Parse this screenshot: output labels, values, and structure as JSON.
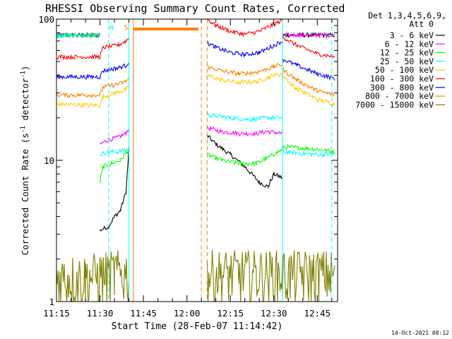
{
  "chart_data": {
    "type": "line",
    "title": "RHESSI Observing Summary Count Rates, Corrected",
    "xlabel": "Start Time (28-Feb-07 11:14:42)",
    "ylabel": "Corrected Count Rate (s⁻¹ detector⁻¹)",
    "ylabel_parts": [
      "Corrected Count Rate (s",
      "-1",
      " detector",
      "-1",
      ")"
    ],
    "footer": "14-Oct-2021 08:12",
    "y_scale": "log",
    "ylim": [
      1,
      100
    ],
    "xlim": [
      "11:15",
      "12:52"
    ],
    "x_ticks": [
      "11:15",
      "11:30",
      "11:45",
      "12:00",
      "12:15",
      "12:30",
      "12:45"
    ],
    "y_ticks": [
      "1",
      "10",
      "100"
    ],
    "legend_header": [
      "Det 1,3,4,5,6,9,",
      "Att 0"
    ],
    "legend_position": "right",
    "flags": [
      {
        "label": "N",
        "x": "11:34",
        "color": "#00ffff"
      },
      {
        "label": "S",
        "x": "11:39",
        "color": "#ff8000"
      }
    ],
    "vlines": [
      {
        "x": "11:33",
        "color": "#00ffff",
        "dashed": true
      },
      {
        "x": "11:40",
        "color": "#00ffff",
        "dashed": false
      },
      {
        "x": "11:41.5",
        "color": "#ff8000",
        "dashed": false
      },
      {
        "x": "12:05",
        "color": "#ff8000",
        "dashed": true
      },
      {
        "x": "12:07",
        "color": "#ff8000",
        "dashed": true
      },
      {
        "x": "12:33",
        "color": "#00ffff",
        "dashed": false
      },
      {
        "x": "12:50",
        "color": "#00ffff",
        "dashed": true
      }
    ],
    "saa_bar": {
      "x": [
        "11:41.5",
        "12:04"
      ],
      "value": 85,
      "color": "#ff8000"
    },
    "series": [
      {
        "name": "3 - 6 keV",
        "color": "#000000",
        "segments": [
          [
            {
              "x": "11:15",
              "y": 77
            },
            {
              "x": "11:30",
              "y": 77
            }
          ],
          [
            {
              "x": "11:30",
              "y": 3.2
            },
            {
              "x": "11:33",
              "y": 3.4
            },
            {
              "x": "11:35",
              "y": 4
            },
            {
              "x": "11:37",
              "y": 4.4
            },
            {
              "x": "11:39",
              "y": 6
            },
            {
              "x": "11:40",
              "y": 12
            }
          ],
          [
            {
              "x": "12:07",
              "y": 15
            },
            {
              "x": "12:10",
              "y": 13
            },
            {
              "x": "12:15",
              "y": 11
            },
            {
              "x": "12:20",
              "y": 9
            },
            {
              "x": "12:25",
              "y": 7
            },
            {
              "x": "12:28",
              "y": 6.5
            },
            {
              "x": "12:30",
              "y": 8
            },
            {
              "x": "12:33",
              "y": 7.5
            }
          ],
          [
            {
              "x": "12:33",
              "y": 77
            },
            {
              "x": "12:51",
              "y": 77
            }
          ]
        ]
      },
      {
        "name": "6 - 12 keV",
        "color": "#ff00ff",
        "segments": [
          [
            {
              "x": "11:15",
              "y": 77
            },
            {
              "x": "11:30",
              "y": 77
            }
          ],
          [
            {
              "x": "11:30",
              "y": 13
            },
            {
              "x": "11:33",
              "y": 14
            },
            {
              "x": "11:36",
              "y": 14.5
            },
            {
              "x": "11:39",
              "y": 15.5
            },
            {
              "x": "11:40",
              "y": 17
            }
          ],
          [
            {
              "x": "12:07",
              "y": 17
            },
            {
              "x": "12:12",
              "y": 16
            },
            {
              "x": "12:18",
              "y": 15.5
            },
            {
              "x": "12:24",
              "y": 15.5
            },
            {
              "x": "12:28",
              "y": 16
            },
            {
              "x": "12:33",
              "y": 15.5
            }
          ],
          [
            {
              "x": "12:33",
              "y": 77
            },
            {
              "x": "12:51",
              "y": 77
            }
          ]
        ]
      },
      {
        "name": "12 - 25 keV",
        "color": "#00ff00",
        "segments": [
          [
            {
              "x": "11:15",
              "y": 77
            },
            {
              "x": "11:30",
              "y": 77
            }
          ],
          [
            {
              "x": "11:30",
              "y": 7
            },
            {
              "x": "11:31",
              "y": 9
            },
            {
              "x": "11:34",
              "y": 9.5
            },
            {
              "x": "11:37",
              "y": 10
            },
            {
              "x": "11:40",
              "y": 12
            }
          ],
          [
            {
              "x": "12:07",
              "y": 11
            },
            {
              "x": "12:12",
              "y": 10
            },
            {
              "x": "12:18",
              "y": 9.5
            },
            {
              "x": "12:24",
              "y": 9.5
            },
            {
              "x": "12:30",
              "y": 11
            },
            {
              "x": "12:33",
              "y": 12
            }
          ],
          [
            {
              "x": "12:33",
              "y": 12.5
            },
            {
              "x": "12:45",
              "y": 12
            },
            {
              "x": "12:51",
              "y": 11.5
            }
          ]
        ]
      },
      {
        "name": "25 - 50 keV",
        "color": "#00ffff",
        "segments": [
          [
            {
              "x": "11:15",
              "y": 77
            },
            {
              "x": "11:30",
              "y": 77
            }
          ],
          [
            {
              "x": "11:30",
              "y": 11
            },
            {
              "x": "11:33",
              "y": 11.5
            },
            {
              "x": "11:36",
              "y": 11.5
            },
            {
              "x": "11:40",
              "y": 12
            }
          ],
          [
            {
              "x": "12:07",
              "y": 21
            },
            {
              "x": "12:15",
              "y": 20
            },
            {
              "x": "12:22",
              "y": 19.5
            },
            {
              "x": "12:28",
              "y": 20
            },
            {
              "x": "12:33",
              "y": 20
            }
          ],
          [
            {
              "x": "12:33",
              "y": 11.5
            },
            {
              "x": "12:45",
              "y": 11
            },
            {
              "x": "12:51",
              "y": 11
            }
          ]
        ]
      },
      {
        "name": "50 - 100 keV",
        "color": "#ffcc00",
        "segments": [
          [
            {
              "x": "11:15",
              "y": 25
            },
            {
              "x": "11:30",
              "y": 24.5
            },
            {
              "x": "11:31",
              "y": 28
            },
            {
              "x": "11:35",
              "y": 30
            },
            {
              "x": "11:38",
              "y": 31
            },
            {
              "x": "11:40",
              "y": 33
            }
          ],
          [
            {
              "x": "12:07",
              "y": 40
            },
            {
              "x": "12:12",
              "y": 37
            },
            {
              "x": "12:18",
              "y": 35.5
            },
            {
              "x": "12:24",
              "y": 36
            },
            {
              "x": "12:30",
              "y": 40
            },
            {
              "x": "12:33",
              "y": 41
            }
          ],
          [
            {
              "x": "12:33",
              "y": 40
            },
            {
              "x": "12:37",
              "y": 33
            },
            {
              "x": "12:45",
              "y": 27
            },
            {
              "x": "12:51",
              "y": 25
            }
          ]
        ]
      },
      {
        "name": "100 - 300 keV",
        "color": "#ff0000",
        "segments": [
          [
            {
              "x": "11:15",
              "y": 54
            },
            {
              "x": "11:30",
              "y": 54
            },
            {
              "x": "11:31",
              "y": 63
            },
            {
              "x": "11:36",
              "y": 65
            },
            {
              "x": "11:39",
              "y": 70
            },
            {
              "x": "11:40",
              "y": 74
            }
          ],
          [
            {
              "x": "12:07",
              "y": 100
            },
            {
              "x": "12:10",
              "y": 90
            },
            {
              "x": "12:15",
              "y": 82
            },
            {
              "x": "12:20",
              "y": 78
            },
            {
              "x": "12:25",
              "y": 82
            },
            {
              "x": "12:30",
              "y": 92
            },
            {
              "x": "12:33",
              "y": 98
            }
          ],
          [
            {
              "x": "12:33",
              "y": 75
            },
            {
              "x": "12:38",
              "y": 65
            },
            {
              "x": "12:45",
              "y": 57
            },
            {
              "x": "12:51",
              "y": 54
            }
          ]
        ]
      },
      {
        "name": "300 - 800 keV",
        "color": "#0000ff",
        "segments": [
          [
            {
              "x": "11:15",
              "y": 39
            },
            {
              "x": "11:30",
              "y": 39
            },
            {
              "x": "11:31",
              "y": 43
            },
            {
              "x": "11:36",
              "y": 45
            },
            {
              "x": "11:39",
              "y": 47
            },
            {
              "x": "11:40",
              "y": 50
            }
          ],
          [
            {
              "x": "12:07",
              "y": 68
            },
            {
              "x": "12:10",
              "y": 63
            },
            {
              "x": "12:15",
              "y": 58
            },
            {
              "x": "12:20",
              "y": 56
            },
            {
              "x": "12:25",
              "y": 58
            },
            {
              "x": "12:30",
              "y": 65
            },
            {
              "x": "12:33",
              "y": 70
            }
          ],
          [
            {
              "x": "12:33",
              "y": 52
            },
            {
              "x": "12:38",
              "y": 47
            },
            {
              "x": "12:45",
              "y": 41
            },
            {
              "x": "12:51",
              "y": 38
            }
          ]
        ]
      },
      {
        "name": "800 - 7000 keV",
        "color": "#ff8000",
        "segments": [
          [
            {
              "x": "11:15",
              "y": 29
            },
            {
              "x": "11:30",
              "y": 29
            },
            {
              "x": "11:31",
              "y": 33
            },
            {
              "x": "11:36",
              "y": 34.5
            },
            {
              "x": "11:39",
              "y": 36
            },
            {
              "x": "11:40",
              "y": 38
            }
          ],
          [
            {
              "x": "12:07",
              "y": 46
            },
            {
              "x": "12:12",
              "y": 43
            },
            {
              "x": "12:18",
              "y": 41
            },
            {
              "x": "12:24",
              "y": 42
            },
            {
              "x": "12:30",
              "y": 46
            },
            {
              "x": "12:33",
              "y": 48
            }
          ],
          [
            {
              "x": "12:33",
              "y": 44
            },
            {
              "x": "12:38",
              "y": 37
            },
            {
              "x": "12:45",
              "y": 31
            },
            {
              "x": "12:51",
              "y": 29
            }
          ]
        ]
      },
      {
        "name": "7000 - 15000 keV",
        "color": "#808000",
        "segments": [
          [
            {
              "x": "11:15",
              "y": 1.5
            },
            {
              "x": "11:25",
              "y": 1.5
            },
            {
              "x": "11:35",
              "y": 1.6
            },
            {
              "x": "11:40",
              "y": 1.6
            }
          ],
          [
            {
              "x": "12:07",
              "y": 1.6
            },
            {
              "x": "12:20",
              "y": 1.6
            },
            {
              "x": "12:33",
              "y": 1.6
            },
            {
              "x": "12:51",
              "y": 1.6
            }
          ]
        ]
      }
    ]
  }
}
